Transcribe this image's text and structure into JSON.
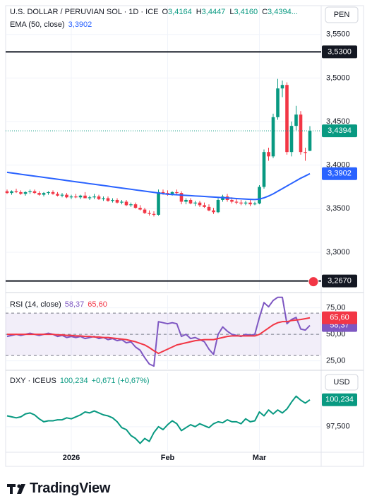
{
  "chart_data": [
    {
      "type": "candlestick",
      "title": "U.S. DOLLAR / PERUVIAN SOL · 1D · ICE",
      "legend": [
        {
          "key": "O",
          "value": "3,4164"
        },
        {
          "key": "H",
          "value": "3,4447"
        },
        {
          "key": "L",
          "value": "3,4160"
        },
        {
          "key": "C",
          "value": "3,4394..."
        }
      ],
      "currency": "PEN",
      "categories": [
        null,
        null,
        null,
        null,
        null,
        null,
        null,
        null,
        null,
        null,
        null,
        null,
        null,
        null,
        "2026",
        null,
        null,
        null,
        null,
        null,
        null,
        null,
        null,
        null,
        null,
        null,
        null,
        null,
        null,
        null,
        null,
        null,
        null,
        null,
        null,
        "Feb",
        null,
        null,
        null,
        null,
        null,
        null,
        null,
        null,
        null,
        null,
        null,
        null,
        null,
        null,
        null,
        null,
        null,
        null,
        null,
        "Mar",
        null,
        null,
        null,
        null,
        null,
        null,
        null,
        null,
        null,
        null,
        null
      ],
      "open": [
        3.37,
        3.368,
        3.37,
        3.369,
        3.367,
        3.369,
        3.37,
        3.368,
        3.366,
        3.368,
        3.369,
        3.367,
        3.365,
        3.366,
        3.363,
        3.364,
        3.363,
        3.365,
        3.362,
        3.363,
        3.364,
        3.361,
        3.362,
        3.359,
        3.36,
        3.357,
        3.358,
        3.354,
        3.355,
        3.351,
        3.349,
        3.345,
        3.344,
        3.343,
        3.369,
        3.368,
        3.367,
        3.369,
        3.368,
        3.358,
        3.36,
        3.356,
        3.357,
        3.354,
        3.352,
        3.348,
        3.346,
        3.36,
        3.364,
        3.36,
        3.358,
        3.357,
        3.356,
        3.357,
        3.355,
        3.356,
        3.375,
        3.415,
        3.41,
        3.455,
        3.488,
        3.492,
        3.415,
        3.445,
        3.458,
        3.415,
        3.4164
      ],
      "high": [
        3.372,
        3.371,
        3.373,
        3.371,
        3.37,
        3.372,
        3.372,
        3.37,
        3.369,
        3.37,
        3.371,
        3.369,
        3.368,
        3.368,
        3.366,
        3.367,
        3.366,
        3.369,
        3.365,
        3.367,
        3.366,
        3.364,
        3.364,
        3.362,
        3.362,
        3.36,
        3.36,
        3.357,
        3.357,
        3.354,
        3.351,
        3.348,
        3.347,
        3.372,
        3.372,
        3.371,
        3.37,
        3.372,
        3.37,
        3.362,
        3.362,
        3.359,
        3.359,
        3.357,
        3.355,
        3.351,
        3.362,
        3.366,
        3.367,
        3.363,
        3.361,
        3.36,
        3.359,
        3.36,
        3.358,
        3.377,
        3.418,
        3.42,
        3.459,
        3.499,
        3.497,
        3.495,
        3.45,
        3.468,
        3.462,
        3.42,
        3.4447
      ],
      "low": [
        3.367,
        3.366,
        3.368,
        3.366,
        3.365,
        3.367,
        3.367,
        3.365,
        3.364,
        3.366,
        3.366,
        3.364,
        3.363,
        3.362,
        3.361,
        3.362,
        3.361,
        3.363,
        3.36,
        3.361,
        3.36,
        3.359,
        3.358,
        3.357,
        3.356,
        3.355,
        3.353,
        3.352,
        3.35,
        3.348,
        3.344,
        3.342,
        3.341,
        3.342,
        3.366,
        3.365,
        3.365,
        3.366,
        3.355,
        3.355,
        3.355,
        3.353,
        3.352,
        3.351,
        3.347,
        3.344,
        3.345,
        3.358,
        3.358,
        3.356,
        3.355,
        3.354,
        3.354,
        3.353,
        3.354,
        3.355,
        3.373,
        3.405,
        3.408,
        3.452,
        3.478,
        3.412,
        3.41,
        3.44,
        3.412,
        3.405,
        3.416
      ],
      "close": [
        3.368,
        3.37,
        3.369,
        3.367,
        3.369,
        3.37,
        3.368,
        3.366,
        3.368,
        3.369,
        3.367,
        3.365,
        3.366,
        3.363,
        3.364,
        3.363,
        3.365,
        3.362,
        3.363,
        3.364,
        3.361,
        3.362,
        3.359,
        3.36,
        3.357,
        3.358,
        3.354,
        3.355,
        3.351,
        3.349,
        3.345,
        3.344,
        3.343,
        3.369,
        3.368,
        3.367,
        3.369,
        3.368,
        3.358,
        3.36,
        3.356,
        3.357,
        3.354,
        3.352,
        3.348,
        3.346,
        3.36,
        3.364,
        3.36,
        3.358,
        3.357,
        3.356,
        3.357,
        3.355,
        3.356,
        3.375,
        3.415,
        3.41,
        3.455,
        3.488,
        3.492,
        3.415,
        3.445,
        3.458,
        3.415,
        3.414,
        3.4394
      ],
      "value_label": "3,4394",
      "up_color": "#089981",
      "down_color": "#f23645",
      "series": [
        {
          "name": "EMA (50, close)",
          "color": "#2962ff",
          "value_label": "3,3902",
          "values": [
            3.3917,
            3.391,
            3.3903,
            3.3895,
            3.3888,
            3.3881,
            3.3874,
            3.3867,
            3.3859,
            3.3852,
            3.3845,
            3.3838,
            3.3831,
            3.3823,
            3.3816,
            3.3809,
            3.3802,
            3.3795,
            3.3787,
            3.378,
            3.3773,
            3.3766,
            3.3759,
            3.3751,
            3.3744,
            3.3737,
            3.373,
            3.3723,
            3.3715,
            3.3708,
            3.3701,
            3.3694,
            3.3687,
            3.368,
            3.3673,
            3.3666,
            3.3663,
            3.366,
            3.3656,
            3.3653,
            3.365,
            3.3646,
            3.3643,
            3.364,
            3.3636,
            3.3633,
            3.363,
            3.3626,
            3.3623,
            3.362,
            3.3616,
            3.3613,
            3.361,
            3.3607,
            3.3605,
            3.361,
            3.3625,
            3.3645,
            3.367,
            3.37,
            3.373,
            3.376,
            3.379,
            3.382,
            3.385,
            3.3875,
            3.3902
          ]
        }
      ],
      "hlines": [
        {
          "value": 3.53,
          "label": "3,5300"
        },
        {
          "value": 3.267,
          "label": "3,2670"
        }
      ],
      "ylim": [
        3.257,
        3.583
      ],
      "yticks": [
        {
          "value": 3.3,
          "label": "3,3000"
        },
        {
          "value": 3.35,
          "label": "3,3500"
        },
        {
          "value": 3.4,
          "label": "3,4000"
        },
        {
          "value": 3.45,
          "label": "3,4500"
        },
        {
          "value": 3.5,
          "label": "3,5000"
        },
        {
          "value": 3.55,
          "label": "3,5500"
        }
      ],
      "grid": true
    },
    {
      "type": "line",
      "title": "RSI (14, close)",
      "series": [
        {
          "color": "#7e57c2",
          "value_label": "58,37",
          "values": [
            48,
            49,
            50,
            49,
            50,
            51,
            50,
            49,
            50,
            51,
            50,
            48,
            49,
            47,
            48,
            47,
            48,
            46,
            47,
            48,
            46,
            47,
            45,
            46,
            44,
            45,
            42,
            43,
            38,
            35,
            28,
            22,
            20,
            62,
            61,
            60,
            61,
            60,
            48,
            50,
            46,
            47,
            45,
            43,
            36,
            31,
            50,
            57,
            53,
            50,
            49,
            48,
            50,
            49,
            50,
            66,
            80,
            76,
            82,
            85,
            85,
            60,
            64,
            66,
            55,
            54,
            58.37
          ]
        },
        {
          "color": "#f23645",
          "value_label": "65,60",
          "values": [
            50,
            50,
            50,
            50,
            50,
            50,
            50,
            50,
            50,
            50,
            50,
            49.5,
            49.5,
            49,
            49,
            48.5,
            48.5,
            48,
            48,
            47.5,
            47.5,
            47,
            47,
            46.5,
            46,
            45.5,
            45,
            44,
            43,
            41.5,
            40,
            37.5,
            34.5,
            32,
            34,
            36,
            38,
            40,
            41,
            42,
            43,
            44,
            44.5,
            45,
            45,
            45,
            46,
            47,
            48,
            48.5,
            48.5,
            48.5,
            48.5,
            48.5,
            48.5,
            50,
            53,
            56,
            59,
            61,
            62,
            62,
            63,
            63.5,
            64,
            64.8,
            65.6
          ]
        }
      ],
      "levels": [
        70,
        50,
        30
      ],
      "ylim": [
        17.4,
        86.8
      ],
      "yticks": [
        {
          "value": 75,
          "label": "75,00"
        },
        {
          "value": 50,
          "label": "50,00"
        },
        {
          "value": 25,
          "label": "25,00"
        }
      ]
    },
    {
      "type": "line",
      "title": "DXY · ICEUS",
      "change_label": "+0,671 (+0,67%)",
      "currency": "USD",
      "series": [
        {
          "color": "#089981",
          "value_label": "100,234",
          "values": [
            98.6,
            98.5,
            98.4,
            98.5,
            98.8,
            98.9,
            98.7,
            98.3,
            98.0,
            98.1,
            98.1,
            98.2,
            98.2,
            98.4,
            98.3,
            98.5,
            98.7,
            99.0,
            98.9,
            99.1,
            98.9,
            98.7,
            98.6,
            98.4,
            98.0,
            97.4,
            97.2,
            96.6,
            96.3,
            95.8,
            96.3,
            96.0,
            96.9,
            97.5,
            97.2,
            97.7,
            98.1,
            97.8,
            97.1,
            97.4,
            97.7,
            97.5,
            97.8,
            97.6,
            97.4,
            97.8,
            98.0,
            97.9,
            98.2,
            98.0,
            98.0,
            97.8,
            98.3,
            98.0,
            98.1,
            99.0,
            98.6,
            99.2,
            98.8,
            99.2,
            98.9,
            99.3,
            100.0,
            100.6,
            100.2,
            99.9,
            100.234
          ]
        }
      ],
      "ylim": [
        94.9,
        102.95
      ],
      "yticks": [
        {
          "value": 97.5,
          "label": "97,500"
        }
      ]
    }
  ],
  "footer": {
    "brand": "TradingView"
  }
}
